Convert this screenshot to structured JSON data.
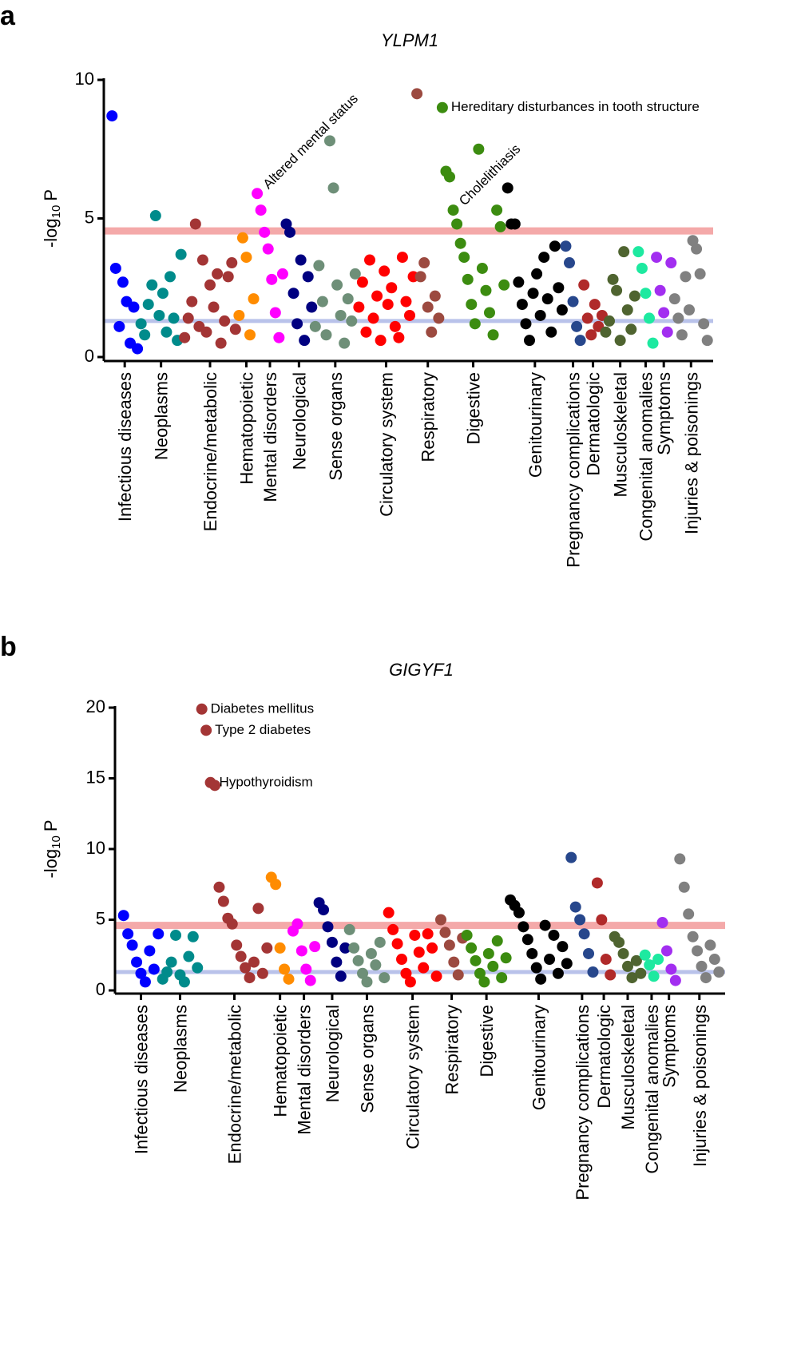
{
  "chart_data": [
    {
      "type": "manhattan",
      "panel": "a",
      "title": "YLPM1",
      "y_label": "-log",
      "y_label_sub": "10",
      "y_label_end": "P",
      "ylim": [
        0,
        10
      ],
      "yticks": [
        0,
        5,
        10
      ],
      "thresholds": [
        {
          "value": 4.55,
          "color": "#f4a9a9"
        },
        {
          "value": 1.3,
          "color": "#b9c2ea"
        }
      ],
      "series": [
        {
          "name": "Infectious diseases",
          "color": "#0000ff",
          "values": [
            8.7,
            3.2,
            1.1,
            2.7,
            2.0,
            0.5,
            1.8,
            0.3
          ]
        },
        {
          "name": "Neoplasms",
          "color": "#008b8b",
          "values": [
            1.2,
            0.8,
            1.9,
            2.6,
            5.1,
            1.5,
            2.3,
            0.9,
            2.9,
            1.4,
            0.6,
            3.7
          ]
        },
        {
          "name": "Endocrine/metabolic",
          "color": "#a33535",
          "values": [
            0.7,
            1.4,
            2.0,
            4.8,
            1.1,
            3.5,
            0.9,
            2.6,
            1.8,
            3.0,
            0.5,
            1.3,
            2.9,
            3.4,
            1.0
          ]
        },
        {
          "name": "Hematopoietic",
          "color": "#ff8c00",
          "values": [
            1.5,
            4.3,
            3.6,
            0.8,
            2.1
          ]
        },
        {
          "name": "Mental disorders",
          "color": "#ff00ff",
          "values": [
            5.9,
            5.3,
            4.5,
            3.9,
            2.8,
            1.6,
            0.7,
            3.0
          ],
          "annotations": [
            {
              "text": "Altered mental status",
              "value": 5.9,
              "angle": -45
            }
          ]
        },
        {
          "name": "Neurological",
          "color": "#000080",
          "values": [
            4.8,
            4.5,
            2.3,
            1.2,
            3.5,
            0.6,
            2.9,
            1.8
          ]
        },
        {
          "name": "Sense organs",
          "color": "#6e8f78",
          "values": [
            1.1,
            3.3,
            2.0,
            0.8,
            7.8,
            6.1,
            2.6,
            1.5,
            0.5,
            2.1,
            1.3,
            3.0
          ]
        },
        {
          "name": "Circulatory system",
          "color": "#ff0000",
          "values": [
            1.8,
            2.7,
            0.9,
            3.5,
            1.4,
            2.2,
            0.6,
            3.1,
            1.9,
            2.5,
            1.1,
            0.7,
            3.6,
            2.0,
            1.5,
            2.9
          ]
        },
        {
          "name": "Respiratory",
          "color": "#9c4a40",
          "values": [
            9.5,
            2.9,
            3.4,
            1.8,
            0.9,
            2.2,
            1.4
          ]
        },
        {
          "name": "Digestive",
          "color": "#3c8c10",
          "values": [
            9.0,
            6.7,
            6.5,
            5.3,
            4.8,
            4.1,
            3.6,
            2.8,
            1.9,
            1.2,
            7.5,
            3.2,
            2.4,
            1.6,
            0.8,
            5.3,
            4.7,
            2.6
          ],
          "annotations": [
            {
              "text": "Hereditary disturbances in tooth structure",
              "value": 9.0,
              "angle": 0
            },
            {
              "text": "Cholelithiasis",
              "value": 5.3,
              "angle": -45
            }
          ]
        },
        {
          "name": "Genitourinary",
          "color": "#000000",
          "values": [
            6.1,
            4.8,
            4.8,
            2.7,
            1.9,
            1.2,
            0.6,
            2.3,
            3.0,
            1.5,
            3.6,
            2.1,
            0.9,
            4.0,
            2.5,
            1.7
          ]
        },
        {
          "name": "Pregnancy complications",
          "color": "#27478c",
          "values": [
            4.0,
            3.4,
            2.0,
            1.1,
            0.6
          ]
        },
        {
          "name": "Dermatologic",
          "color": "#b02a2a",
          "values": [
            2.6,
            1.4,
            0.8,
            1.9,
            1.1,
            1.5
          ]
        },
        {
          "name": "Musculoskeletal",
          "color": "#4f6430",
          "values": [
            0.9,
            1.3,
            2.8,
            2.4,
            0.6,
            3.8,
            1.7,
            1.0,
            2.2
          ]
        },
        {
          "name": "Congenital anomalies",
          "color": "#1de9a0",
          "values": [
            3.8,
            3.2,
            2.3,
            1.4,
            0.5
          ]
        },
        {
          "name": "Symptoms",
          "color": "#a22ef0",
          "values": [
            3.6,
            2.4,
            1.6,
            0.9,
            3.4
          ]
        },
        {
          "name": "Injuries & poisonings",
          "color": "#808080",
          "values": [
            2.1,
            1.4,
            0.8,
            2.9,
            1.7,
            4.2,
            3.9,
            3.0,
            1.2,
            0.6
          ]
        }
      ]
    },
    {
      "type": "manhattan",
      "panel": "b",
      "title": "GIGYF1",
      "y_label": "-log",
      "y_label_sub": "10",
      "y_label_end": "P",
      "ylim": [
        0,
        20
      ],
      "yticks": [
        0,
        5,
        10,
        15,
        20
      ],
      "thresholds": [
        {
          "value": 4.6,
          "color": "#f4a9a9"
        },
        {
          "value": 1.3,
          "color": "#b9c2ea"
        }
      ],
      "series": [
        {
          "name": "Infectious diseases",
          "color": "#0000ff",
          "values": [
            5.3,
            4.0,
            3.2,
            2.0,
            1.2,
            0.6,
            2.8,
            1.5,
            4.0
          ]
        },
        {
          "name": "Neoplasms",
          "color": "#008b8b",
          "values": [
            0.8,
            1.3,
            2.0,
            3.9,
            1.1,
            0.6,
            2.4,
            3.8,
            1.6
          ]
        },
        {
          "name": "Endocrine/metabolic",
          "color": "#a33535",
          "values": [
            19.9,
            18.4,
            14.7,
            14.5,
            7.3,
            6.3,
            5.1,
            4.7,
            3.2,
            2.4,
            1.6,
            0.9,
            2.0,
            5.8,
            1.2,
            3.0
          ],
          "annotations": [
            {
              "text": "Diabetes mellitus",
              "value": 19.9,
              "angle": 0
            },
            {
              "text": "Type 2 diabetes",
              "value": 18.4,
              "angle": 0
            },
            {
              "text": "Hypothyroidism",
              "value": 14.7,
              "angle": 0
            }
          ]
        },
        {
          "name": "Hematopoietic",
          "color": "#ff8c00",
          "values": [
            8.0,
            7.5,
            3.0,
            1.5,
            0.8
          ]
        },
        {
          "name": "Mental disorders",
          "color": "#ff00ff",
          "values": [
            4.2,
            4.7,
            2.8,
            1.5,
            0.7,
            3.1
          ]
        },
        {
          "name": "Neurological",
          "color": "#000080",
          "values": [
            6.2,
            5.7,
            4.5,
            3.4,
            2.0,
            1.0,
            3.0
          ]
        },
        {
          "name": "Sense organs",
          "color": "#6e8f78",
          "values": [
            4.3,
            3.0,
            2.1,
            1.2,
            0.6,
            2.6,
            1.8,
            3.4,
            0.9
          ]
        },
        {
          "name": "Circulatory system",
          "color": "#ff0000",
          "values": [
            5.5,
            4.3,
            3.3,
            2.2,
            1.2,
            0.6,
            3.9,
            2.7,
            1.6,
            4.0,
            3.0,
            1.0
          ]
        },
        {
          "name": "Respiratory",
          "color": "#9c4a40",
          "values": [
            5.0,
            4.1,
            3.2,
            2.0,
            1.1,
            3.7
          ]
        },
        {
          "name": "Digestive",
          "color": "#3c8c10",
          "values": [
            3.9,
            3.0,
            2.1,
            1.2,
            0.6,
            2.6,
            1.7,
            3.5,
            0.9,
            2.3
          ]
        },
        {
          "name": "Genitourinary",
          "color": "#000000",
          "values": [
            6.4,
            6.0,
            5.5,
            4.5,
            3.6,
            2.6,
            1.6,
            0.8,
            4.6,
            2.2,
            3.9,
            1.2,
            3.1,
            1.9
          ]
        },
        {
          "name": "Pregnancy complications",
          "color": "#27478c",
          "values": [
            9.4,
            5.9,
            5.0,
            4.0,
            2.6,
            1.3
          ]
        },
        {
          "name": "Dermatologic",
          "color": "#b02a2a",
          "values": [
            7.6,
            5.0,
            2.2,
            1.1
          ]
        },
        {
          "name": "Musculoskeletal",
          "color": "#4f6430",
          "values": [
            3.8,
            3.4,
            2.6,
            1.7,
            0.9,
            2.1,
            1.2
          ]
        },
        {
          "name": "Congenital anomalies",
          "color": "#1de9a0",
          "values": [
            2.5,
            1.8,
            1.0,
            2.2
          ]
        },
        {
          "name": "Symptoms",
          "color": "#a22ef0",
          "values": [
            4.8,
            2.8,
            1.5,
            0.7
          ]
        },
        {
          "name": "Injuries & poisonings",
          "color": "#808080",
          "values": [
            9.3,
            7.3,
            5.4,
            3.8,
            2.8,
            1.7,
            0.9,
            3.2,
            2.2,
            1.3
          ]
        }
      ]
    }
  ]
}
